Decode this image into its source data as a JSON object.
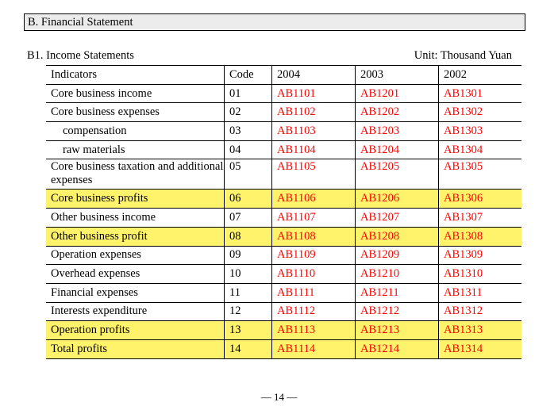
{
  "section_title": "B. Financial Statement",
  "subsection_title": "B1. Income Statements",
  "unit_label": "Unit: Thousand Yuan",
  "columns": [
    "Indicators",
    "Code",
    "2004",
    "2003",
    "2002"
  ],
  "rows": [
    {
      "indicator": "Core business income",
      "code": "01",
      "v2004": "AB1101",
      "v2003": "AB1201",
      "v2002": "AB1301",
      "highlight": false,
      "indent": false
    },
    {
      "indicator": "Core business expenses",
      "code": "02",
      "v2004": "AB1102",
      "v2003": "AB1202",
      "v2002": "AB1302",
      "highlight": false,
      "indent": false
    },
    {
      "indicator": "compensation",
      "code": "03",
      "v2004": "AB1103",
      "v2003": "AB1203",
      "v2002": "AB1303",
      "highlight": false,
      "indent": true
    },
    {
      "indicator": "raw materials",
      "code": "04",
      "v2004": "AB1104",
      "v2003": "AB1204",
      "v2002": "AB1304",
      "highlight": false,
      "indent": true
    },
    {
      "indicator": "Core business taxation and additional expenses",
      "code": "05",
      "v2004": "AB1105",
      "v2003": "AB1205",
      "v2002": "AB1305",
      "highlight": false,
      "indent": false
    },
    {
      "indicator": "Core business profits",
      "code": "06",
      "v2004": "AB1106",
      "v2003": "AB1206",
      "v2002": "AB1306",
      "highlight": true,
      "indent": false
    },
    {
      "indicator": "Other business income",
      "code": "07",
      "v2004": "AB1107",
      "v2003": "AB1207",
      "v2002": "AB1307",
      "highlight": false,
      "indent": false
    },
    {
      "indicator": "Other business profit",
      "code": "08",
      "v2004": "AB1108",
      "v2003": "AB1208",
      "v2002": "AB1308",
      "highlight": true,
      "indent": false
    },
    {
      "indicator": "Operation expenses",
      "code": "09",
      "v2004": "AB1109",
      "v2003": "AB1209",
      "v2002": "AB1309",
      "highlight": false,
      "indent": false
    },
    {
      "indicator": "Overhead expenses",
      "code": "10",
      "v2004": "AB1110",
      "v2003": "AB1210",
      "v2002": "AB1310",
      "highlight": false,
      "indent": false
    },
    {
      "indicator": "Financial expenses",
      "code": "11",
      "v2004": "AB1111",
      "v2003": "AB1211",
      "v2002": "AB1311",
      "highlight": false,
      "indent": false
    },
    {
      "indicator": "Interests expenditure",
      "code": "12",
      "v2004": "AB1112",
      "v2003": "AB1212",
      "v2002": "AB1312",
      "highlight": false,
      "indent": false
    },
    {
      "indicator": "Operation profits",
      "code": "13",
      "v2004": "AB1113",
      "v2003": "AB1213",
      "v2002": "AB1313",
      "highlight": true,
      "indent": false
    },
    {
      "indicator": "Total profits",
      "code": "14",
      "v2004": "AB1114",
      "v2003": "AB1214",
      "v2002": "AB1314",
      "highlight": true,
      "indent": false
    }
  ],
  "page_number": "— 14 —",
  "colors": {
    "value_text": "#ff0000",
    "highlight": "#fff36b",
    "section_bg": "#ececec"
  }
}
